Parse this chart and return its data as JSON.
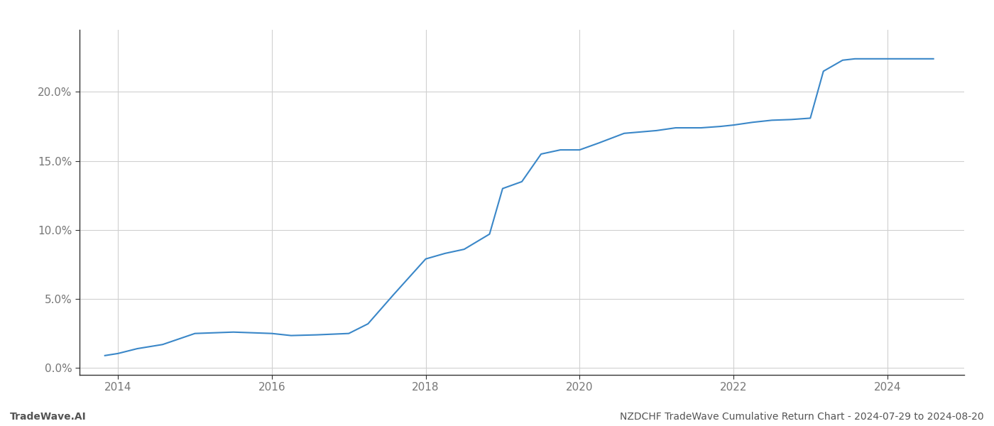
{
  "title": "NZDCHF TradeWave Cumulative Return Chart - 2024-07-29 to 2024-08-20",
  "watermark": "TradeWave.AI",
  "line_color": "#3a87c8",
  "background_color": "#ffffff",
  "grid_color": "#d0d0d0",
  "x_values": [
    2013.83,
    2014.0,
    2014.25,
    2014.58,
    2015.0,
    2015.5,
    2016.0,
    2016.25,
    2016.58,
    2017.0,
    2017.25,
    2017.58,
    2018.0,
    2018.25,
    2018.5,
    2018.83,
    2019.0,
    2019.25,
    2019.5,
    2019.75,
    2020.0,
    2020.25,
    2020.58,
    2021.0,
    2021.25,
    2021.58,
    2021.83,
    2022.0,
    2022.25,
    2022.5,
    2022.75,
    2023.0,
    2023.17,
    2023.42,
    2023.58,
    2024.0,
    2024.42,
    2024.6
  ],
  "y_values": [
    0.9,
    1.05,
    1.4,
    1.7,
    2.5,
    2.6,
    2.5,
    2.35,
    2.4,
    2.5,
    3.2,
    5.3,
    7.9,
    8.3,
    8.6,
    9.7,
    13.0,
    13.5,
    15.5,
    15.8,
    15.8,
    16.3,
    17.0,
    17.2,
    17.4,
    17.4,
    17.5,
    17.6,
    17.8,
    17.95,
    18.0,
    18.1,
    21.5,
    22.3,
    22.4,
    22.4,
    22.4,
    22.4
  ],
  "xlim": [
    2013.5,
    2025.0
  ],
  "ylim": [
    -0.5,
    24.5
  ],
  "xticks": [
    2014,
    2016,
    2018,
    2020,
    2022,
    2024
  ],
  "yticks": [
    0.0,
    5.0,
    10.0,
    15.0,
    20.0
  ],
  "line_width": 1.5,
  "tick_fontsize": 11,
  "watermark_fontsize": 10,
  "title_fontsize": 10,
  "spine_color": "#333333",
  "tick_color": "#777777"
}
